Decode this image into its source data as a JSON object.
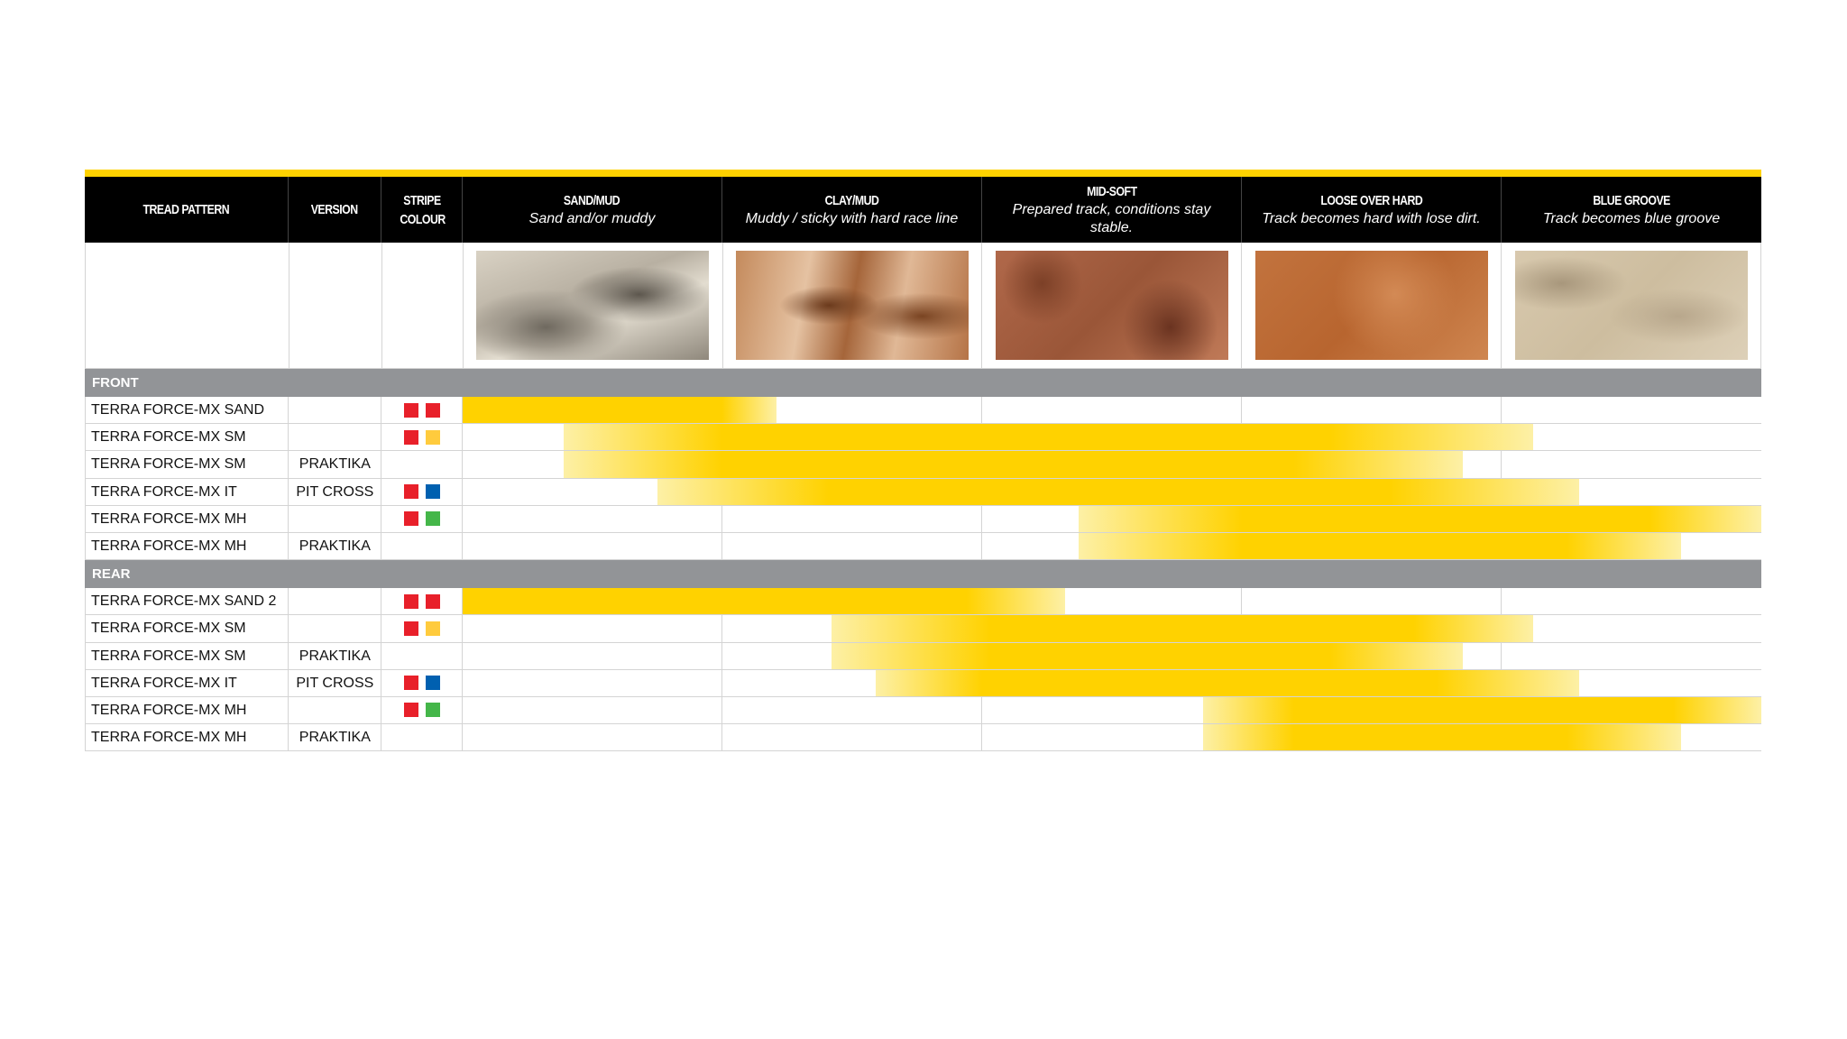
{
  "colors": {
    "accent": "#FFD200",
    "accent_pale": "#FDF0A6",
    "section": "#929497",
    "header": "#000000",
    "stripe": {
      "red": "#E8202A",
      "yellow": "#FFCB3D",
      "blue": "#0060B0",
      "green": "#44B649"
    }
  },
  "header": {
    "tread_pattern": "TREAD PATTERN",
    "version": "VERSION",
    "stripe_colour": "STRIPE COLOUR",
    "conditions": [
      {
        "title": "SAND/MUD",
        "subtitle": "Sand and/or muddy"
      },
      {
        "title": "CLAY/MUD",
        "subtitle": "Muddy / sticky with hard race line"
      },
      {
        "title": "MID-SOFT",
        "subtitle": "Prepared track, conditions stay stable."
      },
      {
        "title": "LOOSE OVER HARD",
        "subtitle": "Track becomes hard with lose dirt."
      },
      {
        "title": "BLUE GROOVE",
        "subtitle": "Track becomes blue groove"
      }
    ]
  },
  "sections": [
    {
      "label": "FRONT",
      "rows": [
        {
          "tread": "TERRA FORCE-MX SAND",
          "version": "",
          "stripe": [
            "red",
            "red"
          ],
          "range": {
            "start": 0,
            "full_from": 0,
            "full_to": 1.0,
            "end": 1.21
          }
        },
        {
          "tread": "TERRA FORCE-MX SM",
          "version": "",
          "stripe": [
            "red",
            "yellow"
          ],
          "range": {
            "start": 0.39,
            "full_from": 1.0,
            "full_to": 3.34,
            "end": 4.12
          }
        },
        {
          "tread": "TERRA FORCE-MX SM",
          "version": "PRAKTIKA",
          "stripe": [],
          "range": {
            "start": 0.39,
            "full_from": 1.0,
            "full_to": 3.2,
            "end": 3.85
          }
        },
        {
          "tread": "TERRA FORCE-MX IT",
          "version": "PIT CROSS",
          "stripe": [
            "red",
            "blue"
          ],
          "range": {
            "start": 0.75,
            "full_from": 1.41,
            "full_to": 3.57,
            "end": 4.3
          }
        },
        {
          "tread": "TERRA FORCE-MX MH",
          "version": "",
          "stripe": [
            "red",
            "green"
          ],
          "range": {
            "start": 2.37,
            "full_from": 3.0,
            "full_to": 4.57,
            "end": 5.0
          }
        },
        {
          "tread": "TERRA FORCE-MX MH",
          "version": "PRAKTIKA",
          "stripe": [],
          "range": {
            "start": 2.37,
            "full_from": 3.0,
            "full_to": 4.25,
            "end": 4.69
          }
        }
      ]
    },
    {
      "label": "REAR",
      "rows": [
        {
          "tread": "TERRA FORCE-MX SAND 2",
          "version": "",
          "stripe": [
            "red",
            "red"
          ],
          "range": {
            "start": 0,
            "full_from": 0,
            "full_to": 1.94,
            "end": 2.32
          }
        },
        {
          "tread": "TERRA FORCE-MX SM",
          "version": "",
          "stripe": [
            "red",
            "yellow"
          ],
          "range": {
            "start": 1.42,
            "full_from": 2.03,
            "full_to": 3.66,
            "end": 4.12
          }
        },
        {
          "tread": "TERRA FORCE-MX SM",
          "version": "PRAKTIKA",
          "stripe": [],
          "range": {
            "start": 1.42,
            "full_from": 2.03,
            "full_to": 3.34,
            "end": 3.85
          }
        },
        {
          "tread": "TERRA FORCE-MX IT",
          "version": "PIT CROSS",
          "stripe": [
            "red",
            "blue"
          ],
          "range": {
            "start": 1.59,
            "full_from": 2.0,
            "full_to": 3.75,
            "end": 4.3
          }
        },
        {
          "tread": "TERRA FORCE-MX MH",
          "version": "",
          "stripe": [
            "red",
            "green"
          ],
          "range": {
            "start": 2.85,
            "full_from": 3.2,
            "full_to": 4.66,
            "end": 5.0
          }
        },
        {
          "tread": "TERRA FORCE-MX MH",
          "version": "PRAKTIKA",
          "stripe": [],
          "range": {
            "start": 2.85,
            "full_from": 3.2,
            "full_to": 4.25,
            "end": 4.69
          }
        }
      ]
    }
  ]
}
